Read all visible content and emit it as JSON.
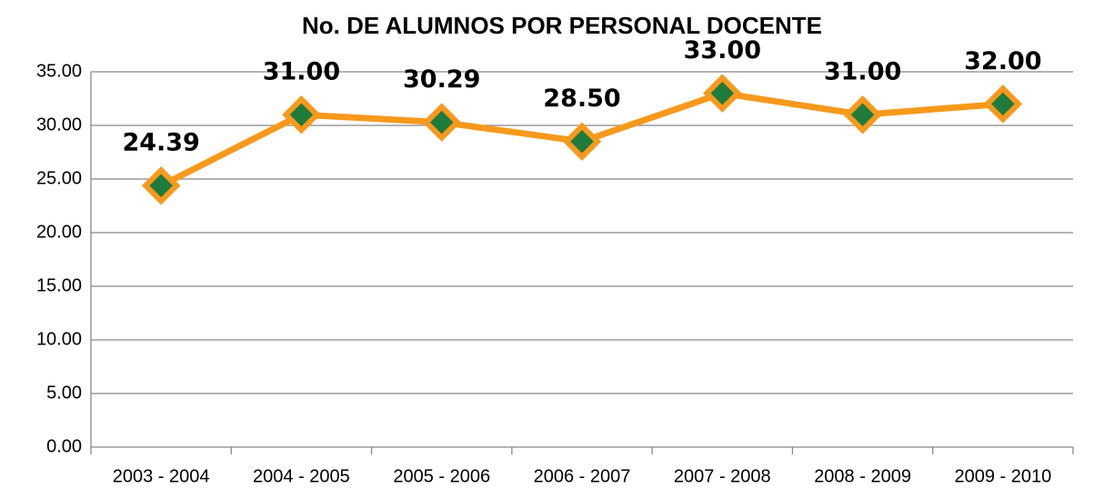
{
  "chart_data": {
    "type": "line",
    "title": "No. DE ALUMNOS POR PERSONAL DOCENTE",
    "categories": [
      "2003 - 2004",
      "2004 - 2005",
      "2005 - 2006",
      "2006 - 2007",
      "2007 - 2008",
      "2008 - 2009",
      "2009 - 2010"
    ],
    "values": [
      24.39,
      31,
      30.29,
      28.5,
      33,
      31,
      32
    ],
    "value_labels": [
      "24.39",
      "31.00",
      "30.29",
      "28.50",
      "33.00",
      "31.00",
      "32.00"
    ],
    "color": "#f7991c",
    "marker_color": "#1e7b3c",
    "ylim": [
      0,
      35
    ],
    "yticks": [
      {
        "value": 0,
        "label": "0.00"
      },
      {
        "value": 5,
        "label": "5.00"
      },
      {
        "value": 10,
        "label": "10.00"
      },
      {
        "value": 15,
        "label": "15.00"
      },
      {
        "value": 20,
        "label": "20.00"
      },
      {
        "value": 25,
        "label": "25.00"
      },
      {
        "value": 30,
        "label": "30.00"
      },
      {
        "value": 35,
        "label": "35.00"
      }
    ],
    "grid": true
  }
}
